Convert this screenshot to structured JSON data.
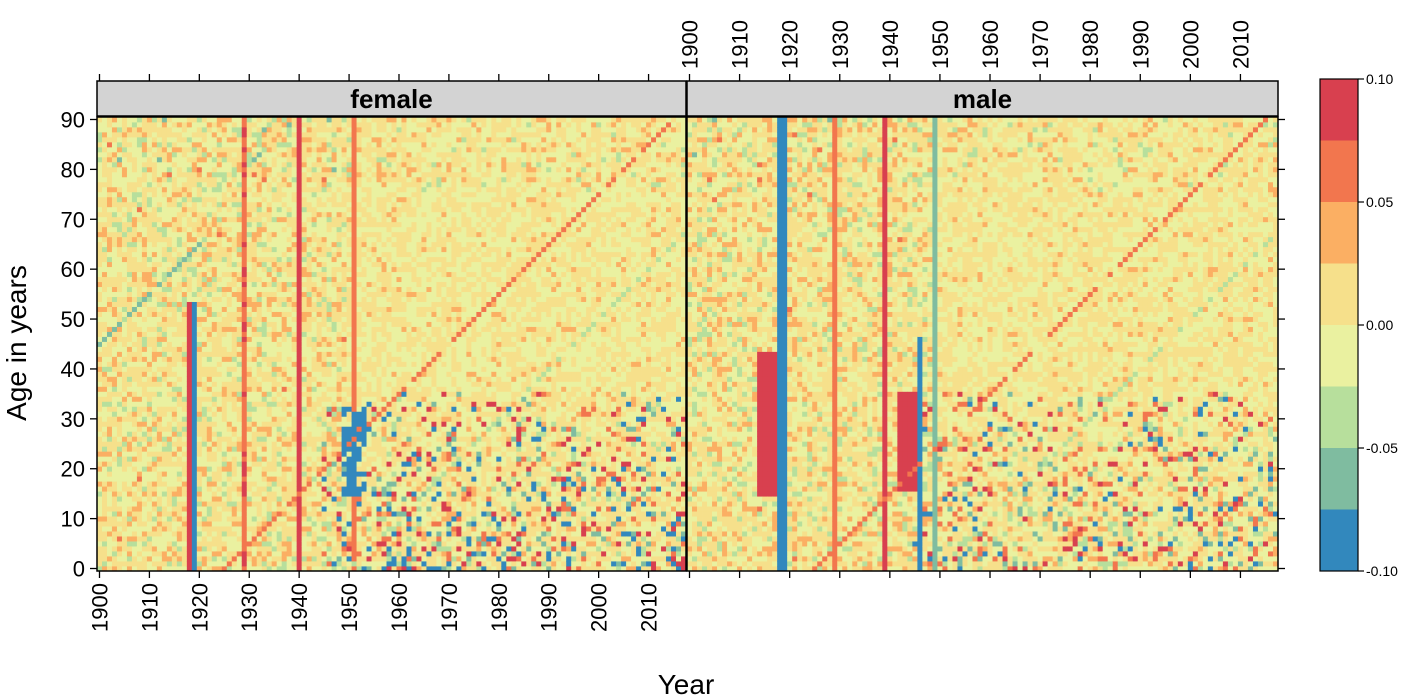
{
  "chart_data": {
    "type": "heatmap",
    "xlabel": "Year",
    "ylabel": "Age in years",
    "x_range": [
      1900,
      2017
    ],
    "y_range": [
      0,
      90
    ],
    "x_ticks": [
      "1900",
      "1910",
      "1920",
      "1930",
      "1940",
      "1950",
      "1960",
      "1970",
      "1980",
      "1990",
      "2000",
      "2010"
    ],
    "y_ticks": [
      "0",
      "10",
      "20",
      "30",
      "40",
      "50",
      "60",
      "70",
      "80",
      "90"
    ],
    "panels": [
      {
        "name": "female"
      },
      {
        "name": "male"
      }
    ],
    "legend": {
      "position": "right",
      "range": [
        -0.1,
        0.1
      ],
      "tick_labels": [
        "0.10",
        "0.05",
        "0.00",
        "-0.05",
        "-0.10"
      ],
      "bins": [
        {
          "from": -0.1,
          "to": -0.075,
          "color": "#3288BD"
        },
        {
          "from": -0.075,
          "to": -0.05,
          "color": "#7FBCA0"
        },
        {
          "from": -0.05,
          "to": -0.025,
          "color": "#B7DF9C"
        },
        {
          "from": -0.025,
          "to": 0.0,
          "color": "#EAF1A0"
        },
        {
          "from": 0.0,
          "to": 0.025,
          "color": "#F6E08B"
        },
        {
          "from": 0.025,
          "to": 0.05,
          "color": "#FBAF63"
        },
        {
          "from": 0.05,
          "to": 0.075,
          "color": "#F2764E"
        },
        {
          "from": 0.075,
          "to": 0.1,
          "color": "#D8404F"
        }
      ]
    },
    "features": {
      "female": [
        {
          "kind": "column",
          "year": 1918,
          "age_from": 0,
          "age_to": 53,
          "value": 0.1,
          "paired_negative": true
        },
        {
          "kind": "column",
          "year": 1929,
          "age_from": 0,
          "age_to": 90,
          "value": 0.07
        },
        {
          "kind": "column",
          "year": 1940,
          "age_from": 0,
          "age_to": 90,
          "value": 0.1
        },
        {
          "kind": "column",
          "year": 1951,
          "age_from": 0,
          "age_to": 90,
          "value": 0.06
        },
        {
          "kind": "diagonal",
          "year_start": 1925,
          "year_end": 2015,
          "value": 0.06
        },
        {
          "kind": "diagonal",
          "year_start": 1900,
          "year_end": 1920,
          "age_start": 45,
          "value": -0.06
        },
        {
          "kind": "noise_block",
          "year_from": 1945,
          "year_to": 2017,
          "age_from": 0,
          "age_to": 35,
          "amplitude": 0.11
        },
        {
          "kind": "blue_patch",
          "year_from": 1949,
          "year_to": 1953,
          "age_from": 15,
          "age_to": 32,
          "value": -0.09
        }
      ],
      "male": [
        {
          "kind": "block",
          "year_from": 1914,
          "year_to": 1918,
          "age_from": 15,
          "age_to": 43,
          "value": 0.1
        },
        {
          "kind": "column",
          "year": 1918,
          "age_from": 0,
          "age_to": 90,
          "value": -0.1
        },
        {
          "kind": "column",
          "year": 1919,
          "age_from": 0,
          "age_to": 90,
          "value": -0.09
        },
        {
          "kind": "column",
          "year": 1929,
          "age_from": 0,
          "age_to": 90,
          "value": 0.06
        },
        {
          "kind": "column",
          "year": 1939,
          "age_from": 0,
          "age_to": 90,
          "value": 0.1
        },
        {
          "kind": "block",
          "year_from": 1942,
          "year_to": 1945,
          "age_from": 16,
          "age_to": 35,
          "value": 0.1
        },
        {
          "kind": "column",
          "year": 1946,
          "age_from": 0,
          "age_to": 46,
          "value": -0.1
        },
        {
          "kind": "column",
          "year": 1949,
          "age_from": 0,
          "age_to": 90,
          "value": -0.06
        },
        {
          "kind": "diagonal",
          "year_start": 1925,
          "year_end": 2015,
          "value": 0.06
        },
        {
          "kind": "noise_block",
          "year_from": 1945,
          "year_to": 2017,
          "age_from": 0,
          "age_to": 35,
          "amplitude": 0.09
        }
      ]
    }
  }
}
